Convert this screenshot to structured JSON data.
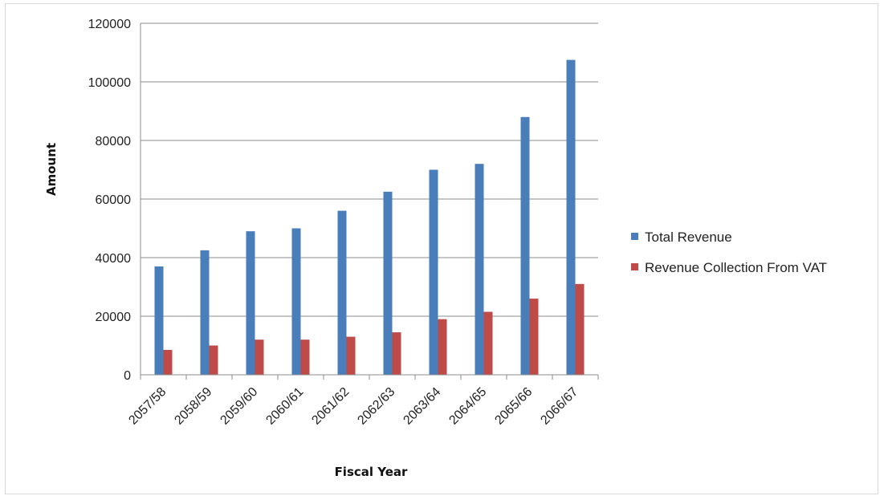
{
  "chart_data": {
    "type": "bar",
    "categories": [
      "2057/58",
      "2058/59",
      "2059/60",
      "2060/61",
      "2061/62",
      "2062/63",
      "2063/64",
      "2064/65",
      "2065/66",
      "2066/67"
    ],
    "series": [
      {
        "name": "Total Revenue",
        "color": "#4a7ebb",
        "values": [
          37000,
          42500,
          49000,
          50000,
          56000,
          62500,
          70000,
          72000,
          88000,
          107500
        ]
      },
      {
        "name": "Revenue Collection From VAT",
        "color": "#be4b48",
        "values": [
          8500,
          10000,
          12000,
          12000,
          13000,
          14500,
          19000,
          21500,
          26000,
          31000
        ]
      }
    ],
    "title": "",
    "xlabel": "Fiscal Year",
    "ylabel": "Amount",
    "ylim": [
      0,
      120000
    ],
    "yticks": [
      "0",
      "20000",
      "40000",
      "60000",
      "80000",
      "100000",
      "120000"
    ],
    "grid": true,
    "legend": "right"
  }
}
